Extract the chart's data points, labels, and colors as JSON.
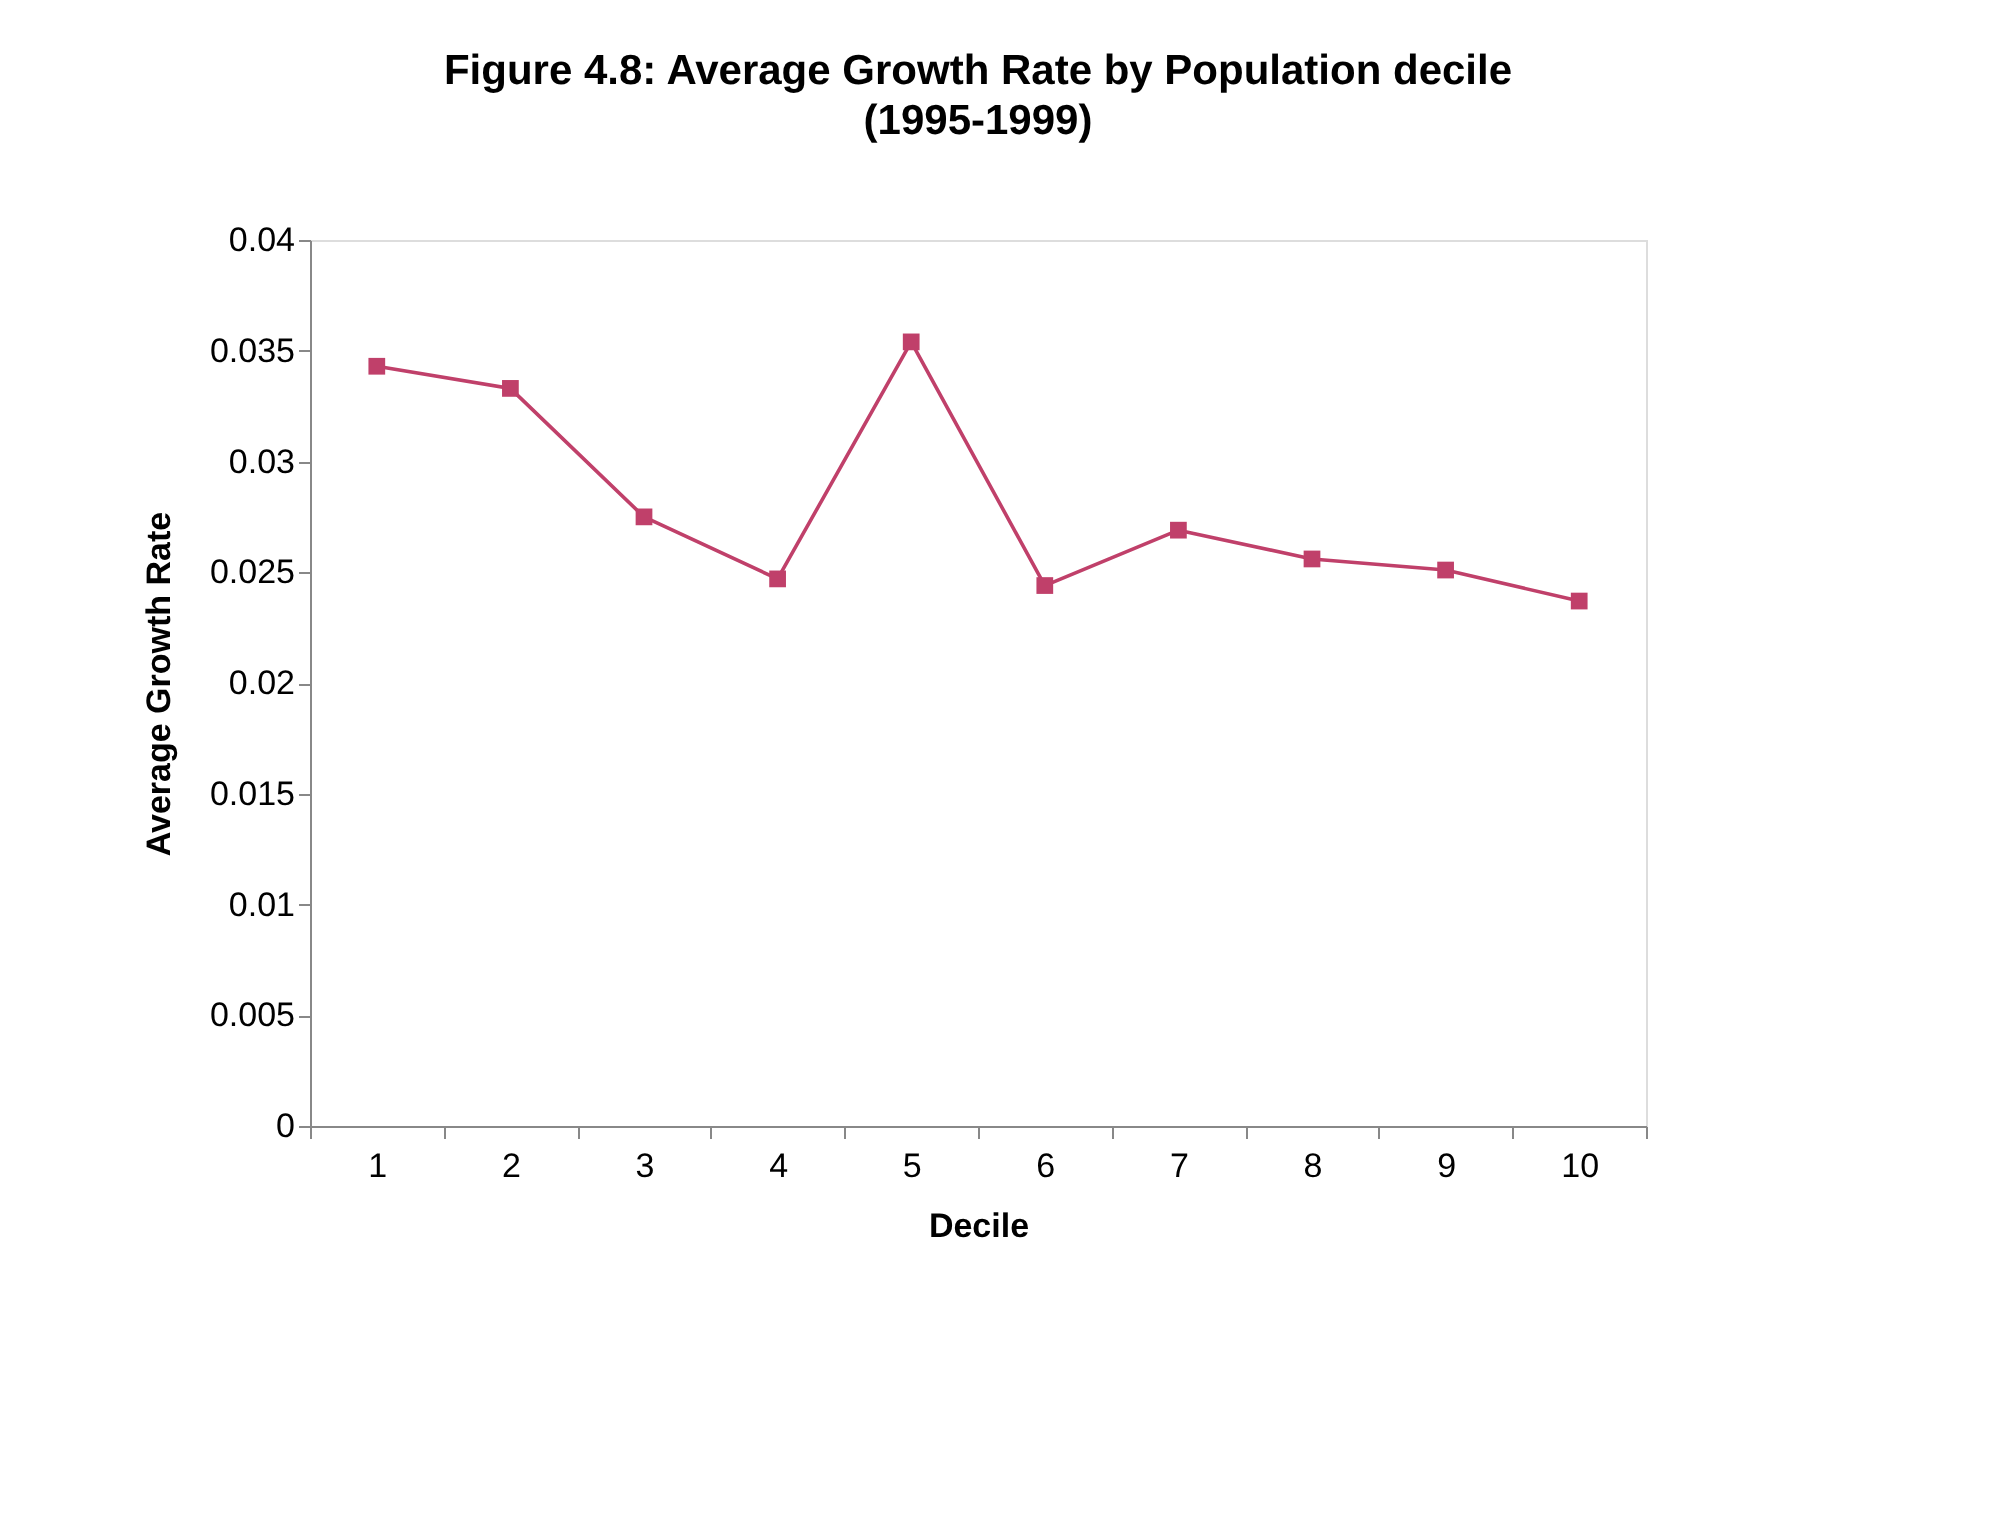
{
  "chart_data": {
    "type": "line",
    "title": "Figure 4.8: Average Growth Rate by Population decile",
    "subtitle": "(1995-1999)",
    "xlabel": "Decile",
    "ylabel": "Average Growth Rate",
    "categories": [
      "1",
      "2",
      "3",
      "4",
      "5",
      "6",
      "7",
      "8",
      "9",
      "10"
    ],
    "series": [
      {
        "color": "#c0406a",
        "values": [
          0.0343,
          0.0333,
          0.0275,
          0.0247,
          0.0354,
          0.0244,
          0.0269,
          0.0256,
          0.0251,
          0.0237
        ]
      }
    ],
    "ylim": [
      0,
      0.04
    ],
    "yticks": [
      0,
      0.005,
      0.01,
      0.015,
      0.02,
      0.025,
      0.03,
      0.035,
      0.04
    ],
    "marker": "square",
    "line_style": "solid",
    "grid": false
  }
}
